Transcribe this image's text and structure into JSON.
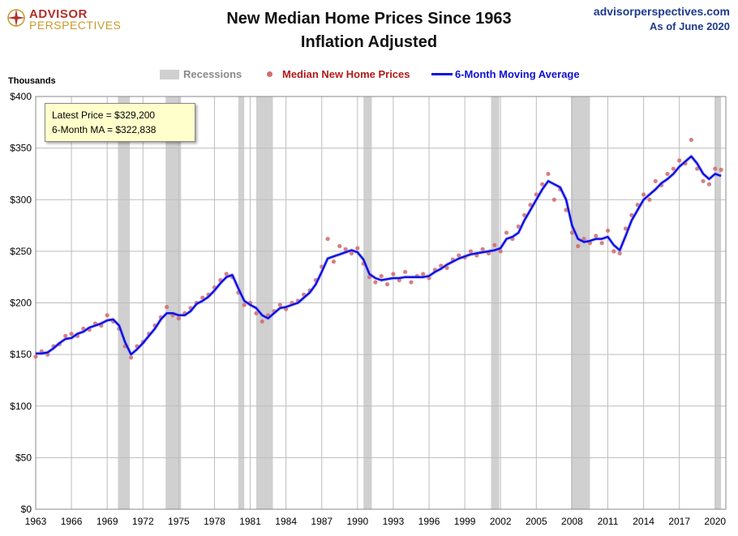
{
  "header": {
    "logo_top": "ADVISOR",
    "logo_bottom": "PERSPECTIVES",
    "title_line1": "New Median Home Prices Since 1963",
    "title_line2": "Inflation Adjusted",
    "site": "advisorperspectives.com",
    "as_of": "As of June 2020"
  },
  "legend": {
    "recessions": "Recessions",
    "median": "Median New Home Prices",
    "moving_average": "6-Month Moving Average"
  },
  "infobox": {
    "latest_price": "Latest Price = $329,200",
    "moving_average": "6-Month MA = $322,838"
  },
  "colors": {
    "recession": "#d0d0d0",
    "dots": "#d06a6a",
    "ma_line": "#1010e0",
    "grid": "#bdbdbd"
  },
  "chart_data": {
    "type": "line",
    "title": "New Median Home Prices Since 1963",
    "subtitle": "Inflation Adjusted",
    "ylabel": "Thousands",
    "xlim": [
      1963,
      2020.9
    ],
    "ylim": [
      0,
      400
    ],
    "y_ticks": [
      0,
      50,
      100,
      150,
      200,
      250,
      300,
      350,
      400
    ],
    "y_tick_labels": [
      "$0",
      "$50",
      "$100",
      "$150",
      "$200",
      "$250",
      "$300",
      "$350",
      "$400"
    ],
    "x_ticks": [
      1963,
      1966,
      1969,
      1972,
      1975,
      1978,
      1981,
      1984,
      1987,
      1990,
      1993,
      1996,
      1999,
      2002,
      2005,
      2008,
      2011,
      2014,
      2017,
      2020
    ],
    "x_tick_labels": [
      "1963",
      "1966",
      "1969",
      "1972",
      "1975",
      "1978",
      "1981",
      "1984",
      "1987",
      "1990",
      "1993",
      "1996",
      "1999",
      "2002",
      "2005",
      "2008",
      "2011",
      "2014",
      "2017",
      "2020"
    ],
    "grid": true,
    "recessions": [
      [
        1969.9,
        1970.9
      ],
      [
        1973.9,
        1975.2
      ],
      [
        1980.0,
        1980.5
      ],
      [
        1981.5,
        1982.9
      ],
      [
        1990.5,
        1991.2
      ],
      [
        2001.2,
        2001.9
      ],
      [
        2007.9,
        2009.5
      ],
      [
        2020.0,
        2020.5
      ]
    ],
    "series": [
      {
        "name": "6-Month Moving Average",
        "style": "line",
        "x": [
          1963.0,
          1963.5,
          1964.0,
          1964.5,
          1965.0,
          1965.5,
          1966.0,
          1966.5,
          1967.0,
          1967.5,
          1968.0,
          1968.5,
          1969.0,
          1969.5,
          1970.0,
          1970.5,
          1971.0,
          1971.5,
          1972.0,
          1972.5,
          1973.0,
          1973.5,
          1974.0,
          1974.5,
          1975.0,
          1975.5,
          1976.0,
          1976.5,
          1977.0,
          1977.5,
          1978.0,
          1978.5,
          1979.0,
          1979.5,
          1980.0,
          1980.5,
          1981.0,
          1981.5,
          1982.0,
          1982.5,
          1983.0,
          1983.5,
          1984.0,
          1984.5,
          1985.0,
          1985.5,
          1986.0,
          1986.5,
          1987.0,
          1987.5,
          1988.0,
          1988.5,
          1989.0,
          1989.5,
          1990.0,
          1990.5,
          1991.0,
          1991.5,
          1992.0,
          1992.5,
          1993.0,
          1993.5,
          1994.0,
          1994.5,
          1995.0,
          1995.5,
          1996.0,
          1996.5,
          1997.0,
          1997.5,
          1998.0,
          1998.5,
          1999.0,
          1999.5,
          2000.0,
          2000.5,
          2001.0,
          2001.5,
          2002.0,
          2002.5,
          2003.0,
          2003.5,
          2004.0,
          2004.5,
          2005.0,
          2005.5,
          2006.0,
          2006.5,
          2007.0,
          2007.5,
          2008.0,
          2008.5,
          2009.0,
          2009.5,
          2010.0,
          2010.5,
          2011.0,
          2011.5,
          2012.0,
          2012.5,
          2013.0,
          2013.5,
          2014.0,
          2014.5,
          2015.0,
          2015.5,
          2016.0,
          2016.5,
          2017.0,
          2017.5,
          2018.0,
          2018.5,
          2019.0,
          2019.5,
          2020.0,
          2020.5
        ],
        "values": [
          151,
          151,
          152,
          156,
          161,
          165,
          166,
          170,
          172,
          176,
          178,
          180,
          183,
          184,
          178,
          162,
          150,
          155,
          161,
          168,
          175,
          184,
          190,
          190,
          188,
          188,
          192,
          199,
          202,
          206,
          212,
          219,
          225,
          227,
          214,
          202,
          198,
          195,
          188,
          185,
          190,
          195,
          196,
          198,
          200,
          205,
          210,
          218,
          230,
          243,
          245,
          247,
          249,
          251,
          249,
          242,
          228,
          224,
          222,
          223,
          224,
          224,
          225,
          225,
          225,
          225,
          226,
          230,
          233,
          237,
          240,
          243,
          245,
          247,
          248,
          249,
          250,
          251,
          253,
          262,
          264,
          268,
          280,
          290,
          300,
          310,
          318,
          315,
          312,
          300,
          275,
          262,
          259,
          260,
          262,
          262,
          264,
          256,
          251,
          265,
          280,
          290,
          300,
          305,
          310,
          316,
          320,
          325,
          332,
          337,
          342,
          335,
          325,
          320,
          325,
          323
        ]
      },
      {
        "name": "Median New Home Prices",
        "style": "scatter",
        "x": [
          1963.0,
          1963.5,
          1964.0,
          1964.5,
          1965.0,
          1965.5,
          1966.0,
          1966.5,
          1967.0,
          1967.5,
          1968.0,
          1968.5,
          1969.0,
          1969.5,
          1970.0,
          1970.5,
          1971.0,
          1971.5,
          1972.0,
          1972.5,
          1973.0,
          1973.5,
          1974.0,
          1974.5,
          1975.0,
          1975.5,
          1976.0,
          1976.5,
          1977.0,
          1977.5,
          1978.0,
          1978.5,
          1979.0,
          1979.5,
          1980.0,
          1980.5,
          1981.0,
          1981.5,
          1982.0,
          1982.5,
          1983.0,
          1983.5,
          1984.0,
          1984.5,
          1985.0,
          1985.5,
          1986.0,
          1986.5,
          1987.0,
          1987.5,
          1988.0,
          1988.5,
          1989.0,
          1989.5,
          1990.0,
          1990.5,
          1991.0,
          1991.5,
          1992.0,
          1992.5,
          1993.0,
          1993.5,
          1994.0,
          1994.5,
          1995.0,
          1995.5,
          1996.0,
          1996.5,
          1997.0,
          1997.5,
          1998.0,
          1998.5,
          1999.0,
          1999.5,
          2000.0,
          2000.5,
          2001.0,
          2001.5,
          2002.0,
          2002.5,
          2003.0,
          2003.5,
          2004.0,
          2004.5,
          2005.0,
          2005.5,
          2006.0,
          2006.5,
          2007.0,
          2007.5,
          2008.0,
          2008.5,
          2009.0,
          2009.5,
          2010.0,
          2010.5,
          2011.0,
          2011.5,
          2012.0,
          2012.5,
          2013.0,
          2013.5,
          2014.0,
          2014.5,
          2015.0,
          2015.5,
          2016.0,
          2016.5,
          2017.0,
          2017.5,
          2018.0,
          2018.5,
          2019.0,
          2019.5,
          2020.0,
          2020.5
        ],
        "values": [
          148,
          153,
          150,
          158,
          160,
          168,
          170,
          168,
          175,
          174,
          180,
          178,
          188,
          182,
          175,
          158,
          147,
          158,
          162,
          170,
          178,
          186,
          196,
          188,
          185,
          190,
          195,
          200,
          205,
          208,
          215,
          222,
          228,
          225,
          210,
          198,
          200,
          190,
          182,
          188,
          192,
          198,
          194,
          200,
          202,
          208,
          212,
          222,
          235,
          262,
          240,
          255,
          252,
          248,
          253,
          238,
          225,
          220,
          226,
          218,
          228,
          222,
          230,
          220,
          226,
          228,
          224,
          232,
          236,
          234,
          242,
          246,
          244,
          250,
          246,
          252,
          248,
          256,
          250,
          268,
          262,
          274,
          285,
          295,
          305,
          315,
          325,
          300,
          310,
          290,
          268,
          255,
          262,
          258,
          265,
          258,
          270,
          250,
          248,
          272,
          285,
          295,
          305,
          300,
          318,
          314,
          325,
          330,
          338,
          335,
          358,
          330,
          318,
          315,
          330,
          329
        ]
      }
    ]
  }
}
